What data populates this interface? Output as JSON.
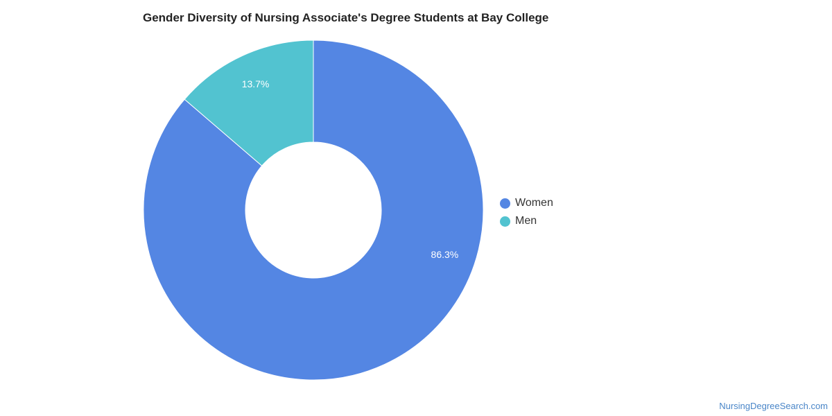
{
  "chart_data": {
    "type": "pie",
    "title": "Gender Diversity of Nursing Associate's Degree Students at Bay College",
    "categories": [
      "Women",
      "Men"
    ],
    "values": [
      86.3,
      13.7
    ],
    "labels": [
      "86.3%",
      "13.7%"
    ],
    "colors": [
      "#5486e3",
      "#52c3d0"
    ],
    "donut": true,
    "legend_position": "right"
  },
  "legend": {
    "items": [
      {
        "label": "Women",
        "color": "#5486e3"
      },
      {
        "label": "Men",
        "color": "#52c3d0"
      }
    ]
  },
  "footer": {
    "source": "NursingDegreeSearch.com"
  }
}
